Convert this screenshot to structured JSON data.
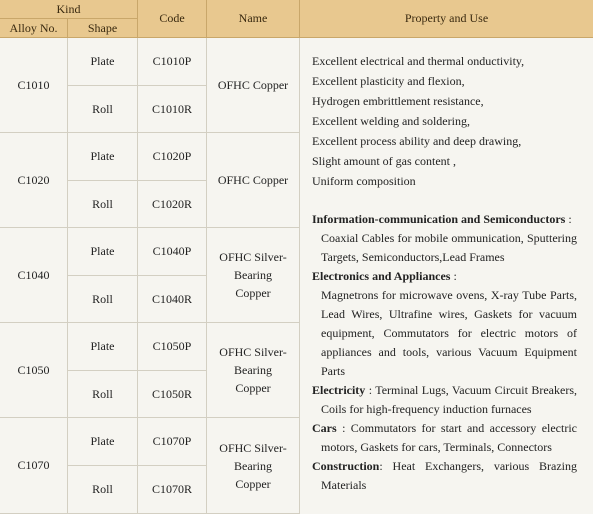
{
  "header": {
    "kind": "Kind",
    "alloy_no": "Alloy No.",
    "shape": "Shape",
    "code": "Code",
    "name": "Name",
    "property": "Property and Use"
  },
  "alloys": [
    {
      "alloy": "C1010",
      "name": "OFHC Copper",
      "forms": [
        {
          "shape": "Plate",
          "code": "C1010P"
        },
        {
          "shape": "Roll",
          "code": "C1010R"
        }
      ]
    },
    {
      "alloy": "C1020",
      "name": "OFHC Copper",
      "forms": [
        {
          "shape": "Plate",
          "code": "C1020P"
        },
        {
          "shape": "Roll",
          "code": "C1020R"
        }
      ]
    },
    {
      "alloy": "C1040",
      "name": "OFHC Silver-Bearing Copper",
      "forms": [
        {
          "shape": "Plate",
          "code": "C1040P"
        },
        {
          "shape": "Roll",
          "code": "C1040R"
        }
      ]
    },
    {
      "alloy": "C1050",
      "name": "OFHC Silver-Bearing Copper",
      "forms": [
        {
          "shape": "Plate",
          "code": "C1050P"
        },
        {
          "shape": "Roll",
          "code": "C1050R"
        }
      ]
    },
    {
      "alloy": "C1070",
      "name": "OFHC Silver-Bearing Copper",
      "forms": [
        {
          "shape": "Plate",
          "code": "C1070P"
        },
        {
          "shape": "Roll",
          "code": "C1070R"
        }
      ]
    }
  ],
  "property": {
    "features": [
      "Excellent electrical and thermal onductivity,",
      "Excellent plasticity and flexion,",
      "Hydrogen embrittlement resistance,",
      "Excellent welding and soldering,",
      "Excellent process ability and deep drawing,",
      "Slight amount of gas content ,",
      "Uniform composition"
    ],
    "sections": [
      {
        "heading": "Information-communication and Semiconductors",
        "rest": " :",
        "detail": "Coaxial Cables for mobile ommunication, Sputtering Targets, Semiconductors,Lead Frames"
      },
      {
        "heading": "Electronics and Appliances",
        "rest": " :",
        "detail": "Magnetrons for microwave ovens, X-ray Tube Parts, Lead Wires, Ultrafine wires, Gaskets for vacuum equipment, Commutators for electric motors of appliances and tools, various Vacuum Equipment Parts"
      },
      {
        "heading": "Electricity",
        "rest": " : Terminal Lugs, Vacuum Circuit Breakers, Coils for high-frequency induction furnaces"
      },
      {
        "heading": "Cars",
        "rest": " : Commutators for start and accessory electric motors, Gaskets for cars, Terminals, Connectors"
      },
      {
        "heading": "Construction",
        "rest": ": Heat Exchangers, various Brazing Materials"
      }
    ]
  }
}
